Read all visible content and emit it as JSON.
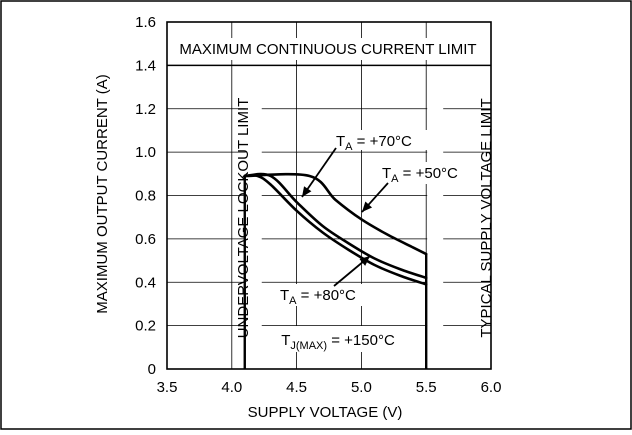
{
  "chart_data": {
    "type": "line",
    "xlabel": "SUPPLY VOLTAGE (V)",
    "ylabel": "MAXIMUM OUTPUT CURRENT (A)",
    "xlim": [
      3.5,
      6.0
    ],
    "ylim": [
      0,
      1.6
    ],
    "x_ticks": [
      "3.5",
      "4.0",
      "4.5",
      "5.0",
      "5.5",
      "6.0"
    ],
    "y_ticks": [
      "0",
      "0.2",
      "0.4",
      "0.6",
      "0.8",
      "1.0",
      "1.2",
      "1.4",
      "1.6"
    ],
    "grid": true,
    "series": [
      {
        "name": "TA = +50°C",
        "x": [
          4.1,
          4.6,
          4.8,
          5.0,
          5.2,
          5.4,
          5.5
        ],
        "y": [
          0.89,
          0.89,
          0.78,
          0.69,
          0.62,
          0.56,
          0.53
        ]
      },
      {
        "name": "TA = +70°C",
        "x": [
          4.1,
          4.3,
          4.5,
          4.7,
          4.9,
          5.1,
          5.3,
          5.5
        ],
        "y": [
          0.89,
          0.89,
          0.77,
          0.66,
          0.58,
          0.51,
          0.46,
          0.42
        ]
      },
      {
        "name": "TA = +80°C",
        "x": [
          4.1,
          4.2,
          4.3,
          4.5,
          4.7,
          4.9,
          5.1,
          5.3,
          5.5
        ],
        "y": [
          0.89,
          0.89,
          0.85,
          0.73,
          0.63,
          0.55,
          0.48,
          0.43,
          0.39
        ]
      }
    ],
    "annotations": {
      "current_limit": "MAXIMUM CONTINUOUS CURRENT LIMIT",
      "current_limit_y": 1.4,
      "uvlo": "UNDERVOLTAGE LOCKOUT LIMIT",
      "uvlo_x": 4.1,
      "supply_limit": "TYPICAL SUPPLY VOLTAGE LIMIT",
      "supply_limit_x": 5.5,
      "tjmax_main": "T",
      "tjmax_sub": "J(MAX)",
      "tjmax_rest": " = +150°C"
    },
    "curve_labels": [
      {
        "main": "T",
        "sub": "A",
        "rest": " = +70°C"
      },
      {
        "main": "T",
        "sub": "A",
        "rest": " = +50°C"
      },
      {
        "main": "T",
        "sub": "A",
        "rest": " = +80°C"
      }
    ]
  }
}
